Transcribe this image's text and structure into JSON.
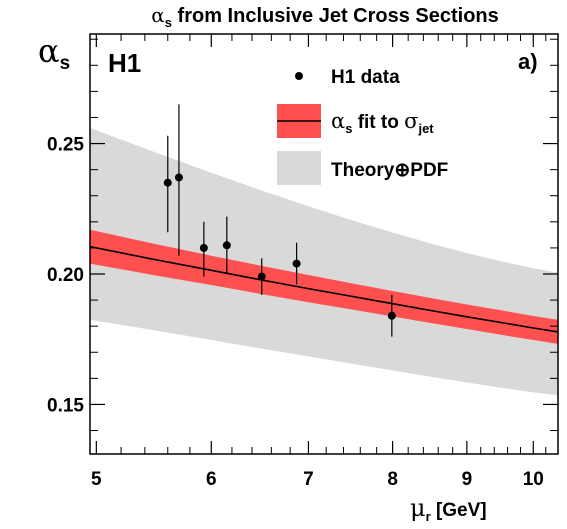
{
  "chart_data": {
    "type": "scatter",
    "title": "αs from Inclusive Jet Cross Sections",
    "experiment": "H1",
    "panel": "a)",
    "xlabel": "μr [GeV]",
    "ylabel": "αs",
    "x_scale": "log",
    "xlim": [
      4.95,
      10.4
    ],
    "ylim": [
      0.131,
      0.292
    ],
    "x_ticks": [
      5,
      6,
      7,
      8,
      9,
      10
    ],
    "y_ticks": [
      0.15,
      0.2,
      0.25
    ],
    "y_tick_labels": [
      "0.15",
      "0.20",
      "0.25"
    ],
    "grid": false,
    "legend": "top-right",
    "legend_entries": [
      {
        "label": "H1 data",
        "symbol": "marker"
      },
      {
        "label": "αs fit to σjet",
        "symbol": "band-with-line"
      },
      {
        "label": "Theory⊕PDF",
        "symbol": "band"
      }
    ],
    "series": [
      {
        "name": "H1 data",
        "kind": "points",
        "x": [
          5.6,
          5.7,
          5.93,
          6.15,
          6.5,
          6.87,
          7.99
        ],
        "y": [
          0.235,
          0.237,
          0.21,
          0.211,
          0.199,
          0.204,
          0.184
        ],
        "yerr_low": [
          0.019,
          0.03,
          0.011,
          0.011,
          0.007,
          0.008,
          0.008
        ],
        "yerr_high": [
          0.018,
          0.028,
          0.01,
          0.011,
          0.007,
          0.008,
          0.008
        ],
        "color": "#000000"
      },
      {
        "name": "αs fit to σjet",
        "kind": "band-with-line",
        "x": [
          4.95,
          5.5,
          6.0,
          6.5,
          7.0,
          7.5,
          8.0,
          8.5,
          9.0,
          9.5,
          10.0,
          10.4
        ],
        "central": [
          0.2105,
          0.2054,
          0.2014,
          0.1977,
          0.1944,
          0.1914,
          0.1886,
          0.186,
          0.1836,
          0.1814,
          0.1793,
          0.1778
        ],
        "lower": [
          0.204,
          0.1994,
          0.1958,
          0.1923,
          0.1892,
          0.1864,
          0.1837,
          0.1812,
          0.1789,
          0.1767,
          0.1747,
          0.1732
        ],
        "upper": [
          0.217,
          0.2114,
          0.207,
          0.2031,
          0.1996,
          0.1964,
          0.1935,
          0.1908,
          0.1883,
          0.1861,
          0.1839,
          0.1824
        ],
        "band_color": "#ff5050",
        "line_color": "#000000"
      },
      {
        "name": "Theory⊕PDF",
        "kind": "band",
        "x": [
          4.95,
          5.5,
          6.0,
          6.5,
          7.0,
          7.5,
          8.0,
          8.5,
          9.0,
          9.5,
          10.0,
          10.4
        ],
        "lower": [
          0.1825,
          0.1783,
          0.1747,
          0.1714,
          0.1684,
          0.1656,
          0.163,
          0.1606,
          0.1584,
          0.1564,
          0.1546,
          0.1535
        ],
        "upper": [
          0.256,
          0.2465,
          0.2388,
          0.232,
          0.226,
          0.2206,
          0.2159,
          0.2117,
          0.208,
          0.2049,
          0.2022,
          0.2005
        ],
        "color": "#d9d9d9"
      }
    ]
  }
}
